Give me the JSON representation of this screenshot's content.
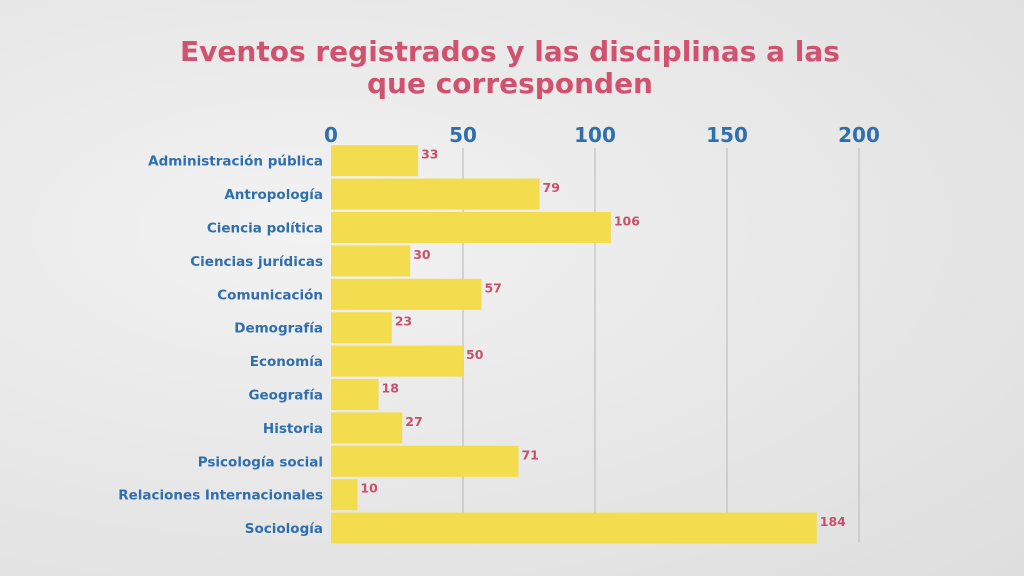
{
  "title": "Eventos registrados y las disciplinas a las que corresponden",
  "colors": {
    "title": "#d1526e",
    "axis": "#2f6fae",
    "bar": "#f3dc4d",
    "value": "#c9506a",
    "grid": "#b7b7b7"
  },
  "chart_data": {
    "type": "bar",
    "orientation": "horizontal",
    "title": "Eventos registrados y las disciplinas a las que corresponden",
    "xlabel": "",
    "ylabel": "",
    "xlim": [
      0,
      200
    ],
    "xticks": [
      0,
      50,
      100,
      150,
      200
    ],
    "x_axis_position": "top",
    "grid": true,
    "categories": [
      "Administración pública",
      "Antropología",
      "Ciencia política",
      "Ciencias jurídicas",
      "Comunicación",
      "Demografía",
      "Economía",
      "Geografía",
      "Historia",
      "Psicología social",
      "Relaciones Internacionales",
      "Sociología"
    ],
    "values": [
      33,
      79,
      106,
      30,
      57,
      23,
      50,
      18,
      27,
      71,
      10,
      184
    ]
  }
}
